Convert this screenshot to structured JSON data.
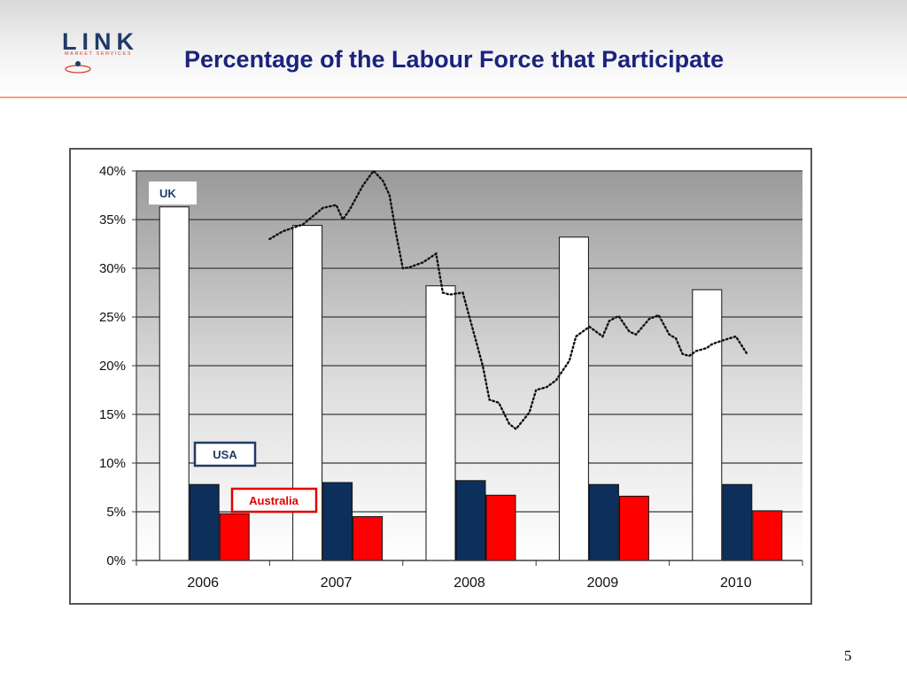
{
  "slide": {
    "title": "Percentage of the Labour Force that Participate",
    "page_number": "5"
  },
  "logo": {
    "word": "LINK",
    "subtitle": "MARKET SERVICES"
  },
  "colors": {
    "title": "#1a237e",
    "uk_bar": "#ffffff",
    "usa_bar": "#0d2f5c",
    "australia_bar": "#ff0000",
    "usa_label_border": "#1f3a66",
    "australia_label_border": "#e00000",
    "header_rule": "#f0a878"
  },
  "chart_data": {
    "type": "bar",
    "categories": [
      "2006",
      "2007",
      "2008",
      "2009",
      "2010"
    ],
    "series": [
      {
        "name": "UK",
        "values": [
          36.3,
          34.4,
          28.2,
          33.2,
          27.8
        ]
      },
      {
        "name": "USA",
        "values": [
          7.8,
          8.0,
          8.2,
          7.8,
          7.8
        ]
      },
      {
        "name": "Australia",
        "values": [
          4.8,
          4.5,
          6.7,
          6.6,
          5.1
        ]
      }
    ],
    "overlay_line": {
      "style": "dotted",
      "x": [
        1.0,
        1.1,
        1.25,
        1.4,
        1.5,
        1.55,
        1.6,
        1.7,
        1.78,
        1.85,
        1.9,
        1.95,
        2.0,
        2.05,
        2.15,
        2.25,
        2.3,
        2.35,
        2.45,
        2.52,
        2.6,
        2.65,
        2.72,
        2.8,
        2.85,
        2.95,
        3.0,
        3.08,
        3.15,
        3.25,
        3.3,
        3.4,
        3.5,
        3.55,
        3.62,
        3.7,
        3.75,
        3.8,
        3.85,
        3.92,
        4.0,
        4.05,
        4.1,
        4.15,
        4.2,
        4.28,
        4.32,
        4.38,
        4.45,
        4.5,
        4.58
      ],
      "values": [
        33.0,
        33.8,
        34.5,
        36.2,
        36.5,
        35.0,
        36.0,
        38.5,
        40.0,
        39.0,
        37.5,
        33.5,
        30.0,
        30.1,
        30.6,
        31.5,
        27.5,
        27.3,
        27.5,
        24.0,
        20.0,
        16.5,
        16.2,
        14.0,
        13.5,
        15.2,
        17.5,
        17.8,
        18.5,
        20.5,
        23.0,
        24.0,
        23.0,
        24.6,
        25.1,
        23.5,
        23.2,
        24.0,
        24.8,
        25.2,
        23.2,
        22.8,
        21.2,
        21.0,
        21.5,
        21.8,
        22.2,
        22.5,
        22.8,
        23.0,
        21.3
      ],
      "x_domain_note": ""
    },
    "legend_labels": [
      "UK",
      "USA",
      "Australia"
    ],
    "ylim": [
      0,
      40
    ],
    "yticks": [
      "0%",
      "5%",
      "10%",
      "15%",
      "20%",
      "25%",
      "30%",
      "35%",
      "40%"
    ],
    "grid": true,
    "title": "",
    "xlabel": "",
    "ylabel": ""
  }
}
